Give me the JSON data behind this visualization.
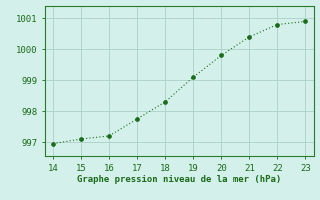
{
  "x": [
    14,
    15,
    16,
    17,
    18,
    19,
    20,
    21,
    22,
    23
  ],
  "y": [
    996.95,
    997.1,
    997.2,
    997.75,
    998.3,
    999.1,
    999.8,
    1000.4,
    1000.8,
    1000.9
  ],
  "line_color": "#1a6b1a",
  "marker_color": "#1a6b1a",
  "bg_color": "#d4f0ea",
  "grid_color": "#b0d5cc",
  "xlabel": "Graphe pression niveau de la mer (hPa)",
  "xlabel_color": "#1a6b1a",
  "tick_color": "#1a6b1a",
  "spine_color": "#2a7a2a",
  "xlim": [
    13.7,
    23.3
  ],
  "ylim": [
    996.55,
    1001.4
  ],
  "yticks": [
    997,
    998,
    999,
    1000,
    1001
  ],
  "xticks": [
    14,
    15,
    16,
    17,
    18,
    19,
    20,
    21,
    22,
    23
  ]
}
